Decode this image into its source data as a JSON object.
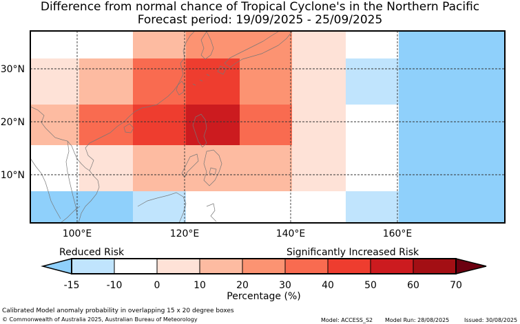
{
  "title_line1": "Difference from normal chance of Tropical Cyclone's in the Northern Pacific",
  "title_line2": "Forecast period: 19/09/2025 - 25/09/2025",
  "map": {
    "lat_labels": [
      "30°N",
      "20°N",
      "10°N"
    ],
    "lon_labels": [
      "100°E",
      "120°E",
      "140°E",
      "160°E"
    ],
    "lat_values": [
      30,
      20,
      10
    ],
    "lon_values": [
      100,
      120,
      140,
      160
    ]
  },
  "legend": {
    "left_label": "Reduced Risk",
    "right_label": "Significantly Increased Risk",
    "tick_labels": [
      "-15",
      "-10",
      "0",
      "10",
      "20",
      "30",
      "40",
      "50",
      "60",
      "70"
    ],
    "bin_colors": [
      "#c0e4fd",
      "#ffffff",
      "#fee2d7",
      "#fdbba1",
      "#fc9372",
      "#f96b50",
      "#ee3d2f",
      "#cc1b1f",
      "#a30f14"
    ],
    "low_extend_color": "#8fd0fb",
    "high_extend_color": "#6c0010",
    "xlabel": "Percentage (%)"
  },
  "colors": {
    "reduced_strong": "#8fd0fb",
    "reduced": "#c0e4fd",
    "neutral": "#ffffff",
    "c10": "#fee2d7",
    "c20": "#fdbba1",
    "c30": "#fc9372",
    "c40": "#f96b50",
    "c50": "#ee3d2f",
    "c60": "#cc1b1f"
  },
  "footer": {
    "line1": "Calibrated Model anomaly probability in overlapping 15 x 20 degree boxes",
    "line2": "© Commonwealth of Australia 2025, Australian Bureau of Meteorology",
    "model": "Model: ACCESS_S2",
    "run": "Model Run: 28/08/2025",
    "issued": "Issued: 30/08/2025"
  }
}
